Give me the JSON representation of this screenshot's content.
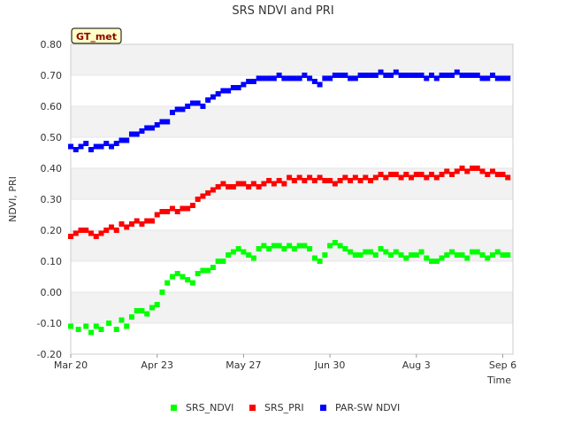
{
  "chart_data": {
    "type": "scatter",
    "title": "SRS NDVI and PRI",
    "badge": "GT_met",
    "xlabel": "Time",
    "ylabel": "NDVI, PRI",
    "ylim": [
      -0.2,
      0.8
    ],
    "xlim_days": [
      0,
      174
    ],
    "x_ticks": [
      {
        "label": "Mar 20",
        "day": 0
      },
      {
        "label": "Apr 23",
        "day": 34
      },
      {
        "label": "May 27",
        "day": 68
      },
      {
        "label": "Jun 30",
        "day": 102
      },
      {
        "label": "Aug 3",
        "day": 136
      },
      {
        "label": "Sep 6",
        "day": 170
      }
    ],
    "y_ticks": [
      {
        "label": "0.80",
        "value": 0.8
      },
      {
        "label": "0.70",
        "value": 0.7
      },
      {
        "label": "0.60",
        "value": 0.6
      },
      {
        "label": "0.50",
        "value": 0.5
      },
      {
        "label": "0.40",
        "value": 0.4
      },
      {
        "label": "0.30",
        "value": 0.3
      },
      {
        "label": "0.20",
        "value": 0.2
      },
      {
        "label": "0.10",
        "value": 0.1
      },
      {
        "label": "0.00",
        "value": 0.0
      },
      {
        "label": "-0.10",
        "value": -0.1
      },
      {
        "label": "-0.20",
        "value": -0.2
      }
    ],
    "grid": "horizontal alternating bands",
    "legend_position": "bottom",
    "series": [
      {
        "name": "SRS_NDVI",
        "color": "#00ff00",
        "points": [
          [
            0,
            -0.11
          ],
          [
            3,
            -0.12
          ],
          [
            6,
            -0.11
          ],
          [
            8,
            -0.13
          ],
          [
            10,
            -0.11
          ],
          [
            12,
            -0.12
          ],
          [
            15,
            -0.1
          ],
          [
            18,
            -0.12
          ],
          [
            20,
            -0.09
          ],
          [
            22,
            -0.11
          ],
          [
            24,
            -0.08
          ],
          [
            26,
            -0.06
          ],
          [
            28,
            -0.06
          ],
          [
            30,
            -0.07
          ],
          [
            32,
            -0.05
          ],
          [
            34,
            -0.04
          ],
          [
            36,
            0.0
          ],
          [
            38,
            0.03
          ],
          [
            40,
            0.05
          ],
          [
            42,
            0.06
          ],
          [
            44,
            0.05
          ],
          [
            46,
            0.04
          ],
          [
            48,
            0.03
          ],
          [
            50,
            0.06
          ],
          [
            52,
            0.07
          ],
          [
            54,
            0.07
          ],
          [
            56,
            0.08
          ],
          [
            58,
            0.1
          ],
          [
            60,
            0.1
          ],
          [
            62,
            0.12
          ],
          [
            64,
            0.13
          ],
          [
            66,
            0.14
          ],
          [
            68,
            0.13
          ],
          [
            70,
            0.12
          ],
          [
            72,
            0.11
          ],
          [
            74,
            0.14
          ],
          [
            76,
            0.15
          ],
          [
            78,
            0.14
          ],
          [
            80,
            0.15
          ],
          [
            82,
            0.15
          ],
          [
            84,
            0.14
          ],
          [
            86,
            0.15
          ],
          [
            88,
            0.14
          ],
          [
            90,
            0.15
          ],
          [
            92,
            0.15
          ],
          [
            94,
            0.14
          ],
          [
            96,
            0.11
          ],
          [
            98,
            0.1
          ],
          [
            100,
            0.12
          ],
          [
            102,
            0.15
          ],
          [
            104,
            0.16
          ],
          [
            106,
            0.15
          ],
          [
            108,
            0.14
          ],
          [
            110,
            0.13
          ],
          [
            112,
            0.12
          ],
          [
            114,
            0.12
          ],
          [
            116,
            0.13
          ],
          [
            118,
            0.13
          ],
          [
            120,
            0.12
          ],
          [
            122,
            0.14
          ],
          [
            124,
            0.13
          ],
          [
            126,
            0.12
          ],
          [
            128,
            0.13
          ],
          [
            130,
            0.12
          ],
          [
            132,
            0.11
          ],
          [
            134,
            0.12
          ],
          [
            136,
            0.12
          ],
          [
            138,
            0.13
          ],
          [
            140,
            0.11
          ],
          [
            142,
            0.1
          ],
          [
            144,
            0.1
          ],
          [
            146,
            0.11
          ],
          [
            148,
            0.12
          ],
          [
            150,
            0.13
          ],
          [
            152,
            0.12
          ],
          [
            154,
            0.12
          ],
          [
            156,
            0.11
          ],
          [
            158,
            0.13
          ],
          [
            160,
            0.13
          ],
          [
            162,
            0.12
          ],
          [
            164,
            0.11
          ],
          [
            166,
            0.12
          ],
          [
            168,
            0.13
          ],
          [
            170,
            0.12
          ],
          [
            172,
            0.12
          ]
        ]
      },
      {
        "name": "SRS_PRI",
        "color": "#ff0000",
        "points": [
          [
            0,
            0.18
          ],
          [
            2,
            0.19
          ],
          [
            4,
            0.2
          ],
          [
            6,
            0.2
          ],
          [
            8,
            0.19
          ],
          [
            10,
            0.18
          ],
          [
            12,
            0.19
          ],
          [
            14,
            0.2
          ],
          [
            16,
            0.21
          ],
          [
            18,
            0.2
          ],
          [
            20,
            0.22
          ],
          [
            22,
            0.21
          ],
          [
            24,
            0.22
          ],
          [
            26,
            0.23
          ],
          [
            28,
            0.22
          ],
          [
            30,
            0.23
          ],
          [
            32,
            0.23
          ],
          [
            34,
            0.25
          ],
          [
            36,
            0.26
          ],
          [
            38,
            0.26
          ],
          [
            40,
            0.27
          ],
          [
            42,
            0.26
          ],
          [
            44,
            0.27
          ],
          [
            46,
            0.27
          ],
          [
            48,
            0.28
          ],
          [
            50,
            0.3
          ],
          [
            52,
            0.31
          ],
          [
            54,
            0.32
          ],
          [
            56,
            0.33
          ],
          [
            58,
            0.34
          ],
          [
            60,
            0.35
          ],
          [
            62,
            0.34
          ],
          [
            64,
            0.34
          ],
          [
            66,
            0.35
          ],
          [
            68,
            0.35
          ],
          [
            70,
            0.34
          ],
          [
            72,
            0.35
          ],
          [
            74,
            0.34
          ],
          [
            76,
            0.35
          ],
          [
            78,
            0.36
          ],
          [
            80,
            0.35
          ],
          [
            82,
            0.36
          ],
          [
            84,
            0.35
          ],
          [
            86,
            0.37
          ],
          [
            88,
            0.36
          ],
          [
            90,
            0.37
          ],
          [
            92,
            0.36
          ],
          [
            94,
            0.37
          ],
          [
            96,
            0.36
          ],
          [
            98,
            0.37
          ],
          [
            100,
            0.36
          ],
          [
            102,
            0.36
          ],
          [
            104,
            0.35
          ],
          [
            106,
            0.36
          ],
          [
            108,
            0.37
          ],
          [
            110,
            0.36
          ],
          [
            112,
            0.37
          ],
          [
            114,
            0.36
          ],
          [
            116,
            0.37
          ],
          [
            118,
            0.36
          ],
          [
            120,
            0.37
          ],
          [
            122,
            0.38
          ],
          [
            124,
            0.37
          ],
          [
            126,
            0.38
          ],
          [
            128,
            0.38
          ],
          [
            130,
            0.37
          ],
          [
            132,
            0.38
          ],
          [
            134,
            0.37
          ],
          [
            136,
            0.38
          ],
          [
            138,
            0.38
          ],
          [
            140,
            0.37
          ],
          [
            142,
            0.38
          ],
          [
            144,
            0.37
          ],
          [
            146,
            0.38
          ],
          [
            148,
            0.39
          ],
          [
            150,
            0.38
          ],
          [
            152,
            0.39
          ],
          [
            154,
            0.4
          ],
          [
            156,
            0.39
          ],
          [
            158,
            0.4
          ],
          [
            160,
            0.4
          ],
          [
            162,
            0.39
          ],
          [
            164,
            0.38
          ],
          [
            166,
            0.39
          ],
          [
            168,
            0.38
          ],
          [
            170,
            0.38
          ],
          [
            172,
            0.37
          ]
        ]
      },
      {
        "name": "PAR-SW NDVI",
        "color": "#0000ff",
        "points": [
          [
            0,
            0.47
          ],
          [
            2,
            0.46
          ],
          [
            4,
            0.47
          ],
          [
            6,
            0.48
          ],
          [
            8,
            0.46
          ],
          [
            10,
            0.47
          ],
          [
            12,
            0.47
          ],
          [
            14,
            0.48
          ],
          [
            16,
            0.47
          ],
          [
            18,
            0.48
          ],
          [
            20,
            0.49
          ],
          [
            22,
            0.49
          ],
          [
            24,
            0.51
          ],
          [
            26,
            0.51
          ],
          [
            28,
            0.52
          ],
          [
            30,
            0.53
          ],
          [
            32,
            0.53
          ],
          [
            34,
            0.54
          ],
          [
            36,
            0.55
          ],
          [
            38,
            0.55
          ],
          [
            40,
            0.58
          ],
          [
            42,
            0.59
          ],
          [
            44,
            0.59
          ],
          [
            46,
            0.6
          ],
          [
            48,
            0.61
          ],
          [
            50,
            0.61
          ],
          [
            52,
            0.6
          ],
          [
            54,
            0.62
          ],
          [
            56,
            0.63
          ],
          [
            58,
            0.64
          ],
          [
            60,
            0.65
          ],
          [
            62,
            0.65
          ],
          [
            64,
            0.66
          ],
          [
            66,
            0.66
          ],
          [
            68,
            0.67
          ],
          [
            70,
            0.68
          ],
          [
            72,
            0.68
          ],
          [
            74,
            0.69
          ],
          [
            76,
            0.69
          ],
          [
            78,
            0.69
          ],
          [
            80,
            0.69
          ],
          [
            82,
            0.7
          ],
          [
            84,
            0.69
          ],
          [
            86,
            0.69
          ],
          [
            88,
            0.69
          ],
          [
            90,
            0.69
          ],
          [
            92,
            0.7
          ],
          [
            94,
            0.69
          ],
          [
            96,
            0.68
          ],
          [
            98,
            0.67
          ],
          [
            100,
            0.69
          ],
          [
            102,
            0.69
          ],
          [
            104,
            0.7
          ],
          [
            106,
            0.7
          ],
          [
            108,
            0.7
          ],
          [
            110,
            0.69
          ],
          [
            112,
            0.69
          ],
          [
            114,
            0.7
          ],
          [
            116,
            0.7
          ],
          [
            118,
            0.7
          ],
          [
            120,
            0.7
          ],
          [
            122,
            0.71
          ],
          [
            124,
            0.7
          ],
          [
            126,
            0.7
          ],
          [
            128,
            0.71
          ],
          [
            130,
            0.7
          ],
          [
            132,
            0.7
          ],
          [
            134,
            0.7
          ],
          [
            136,
            0.7
          ],
          [
            138,
            0.7
          ],
          [
            140,
            0.69
          ],
          [
            142,
            0.7
          ],
          [
            144,
            0.69
          ],
          [
            146,
            0.7
          ],
          [
            148,
            0.7
          ],
          [
            150,
            0.7
          ],
          [
            152,
            0.71
          ],
          [
            154,
            0.7
          ],
          [
            156,
            0.7
          ],
          [
            158,
            0.7
          ],
          [
            160,
            0.7
          ],
          [
            162,
            0.69
          ],
          [
            164,
            0.69
          ],
          [
            166,
            0.7
          ],
          [
            168,
            0.69
          ],
          [
            170,
            0.69
          ],
          [
            172,
            0.69
          ]
        ]
      }
    ]
  }
}
